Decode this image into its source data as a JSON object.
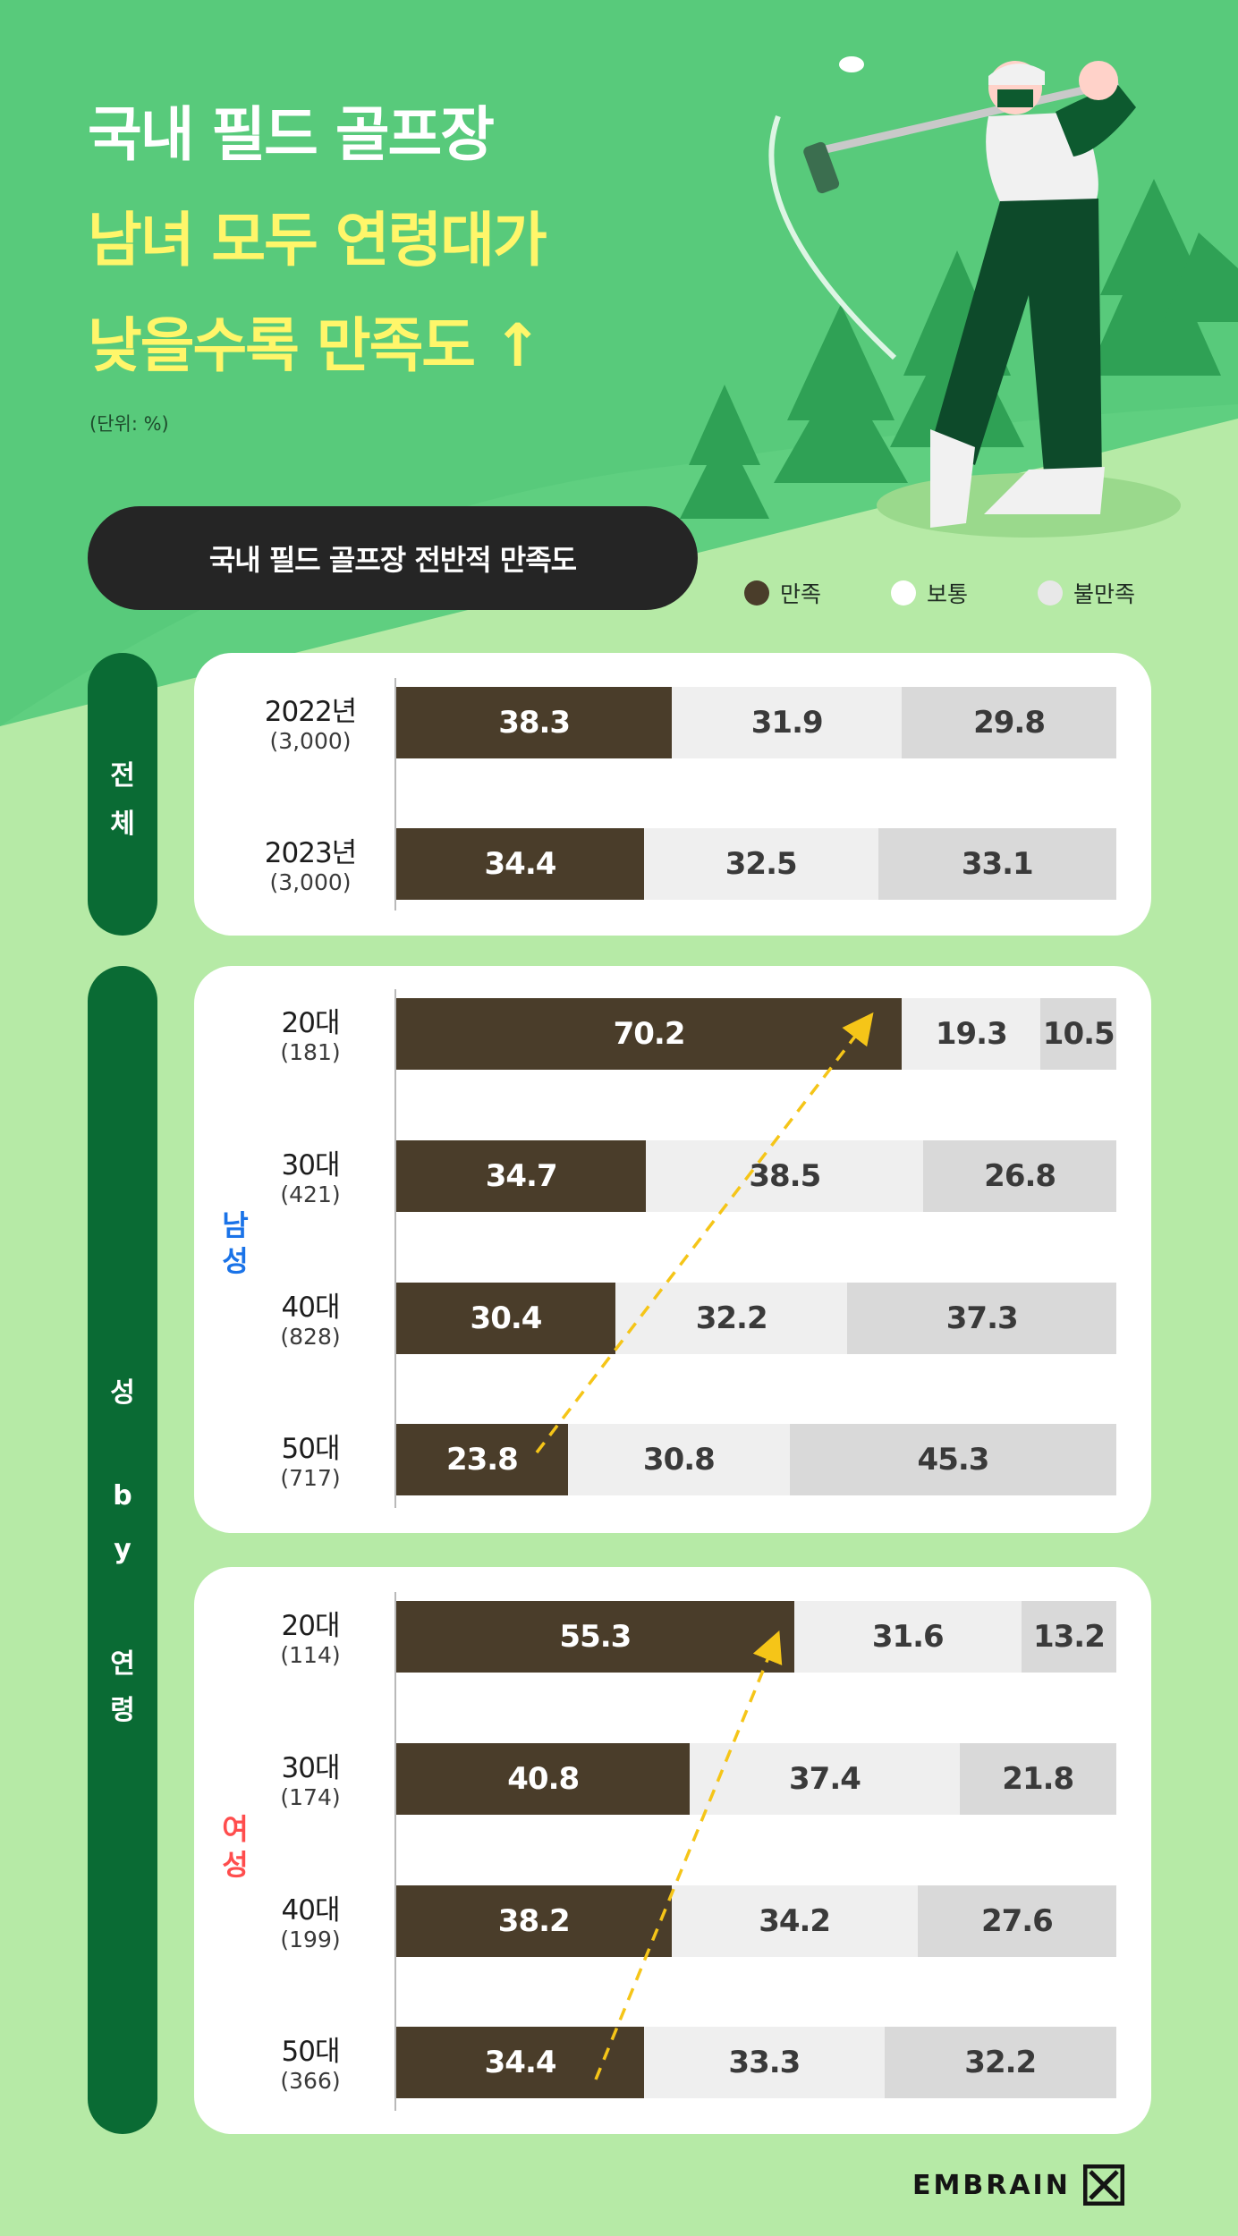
{
  "title": {
    "line1": "국내 필드 골프장",
    "line2": "남녀 모두 연령대가",
    "line3": "낮을수록 만족도 ↑"
  },
  "unit_note": "(단위: %)",
  "section_pill": "국내 필드 골프장 전반적 만족도",
  "legend": [
    {
      "label": "만족",
      "color": "#4a3d2a"
    },
    {
      "label": "보통",
      "color": "#efefef"
    },
    {
      "label": "불만족",
      "color": "#d9d9d9"
    }
  ],
  "side_tabs": {
    "overall": [
      "전",
      "체"
    ],
    "by_age": [
      "성",
      "b",
      "y",
      "연",
      "령"
    ]
  },
  "group_labels": {
    "male": [
      "남",
      "성"
    ],
    "female": [
      "여",
      "성"
    ]
  },
  "brand": "EMBRAIN",
  "chart_data": {
    "type": "bar",
    "stacked": true,
    "orientation": "horizontal",
    "unit": "%",
    "series": [
      {
        "name": "만족",
        "color": "#4a3d2a"
      },
      {
        "name": "보통",
        "color": "#efefef"
      },
      {
        "name": "불만족",
        "color": "#d9d9d9"
      }
    ],
    "groups": [
      {
        "key": "overall",
        "rows": [
          {
            "label": "2022년",
            "n": "(3,000)",
            "values": [
              38.3,
              31.9,
              29.8
            ]
          },
          {
            "label": "2023년",
            "n": "(3,000)",
            "values": [
              34.4,
              32.5,
              33.1
            ]
          }
        ]
      },
      {
        "key": "male",
        "label": "남성",
        "label_color": "#1a73e8",
        "rows": [
          {
            "label": "20대",
            "n": "(181)",
            "values": [
              70.2,
              19.3,
              10.5
            ]
          },
          {
            "label": "30대",
            "n": "(421)",
            "values": [
              34.7,
              38.5,
              26.8
            ]
          },
          {
            "label": "40대",
            "n": "(828)",
            "values": [
              30.4,
              32.2,
              37.3
            ]
          },
          {
            "label": "50대",
            "n": "(717)",
            "values": [
              23.8,
              30.8,
              45.3
            ]
          }
        ]
      },
      {
        "key": "female",
        "label": "여성",
        "label_color": "#ff4d4d",
        "rows": [
          {
            "label": "20대",
            "n": "(114)",
            "values": [
              55.3,
              31.6,
              13.2
            ]
          },
          {
            "label": "30대",
            "n": "(174)",
            "values": [
              40.8,
              37.4,
              21.8
            ]
          },
          {
            "label": "40대",
            "n": "(199)",
            "values": [
              38.2,
              34.2,
              27.6
            ]
          },
          {
            "label": "50대",
            "n": "(366)",
            "values": [
              34.4,
              33.3,
              32.2
            ]
          }
        ]
      }
    ],
    "xlim": [
      0,
      100
    ]
  }
}
